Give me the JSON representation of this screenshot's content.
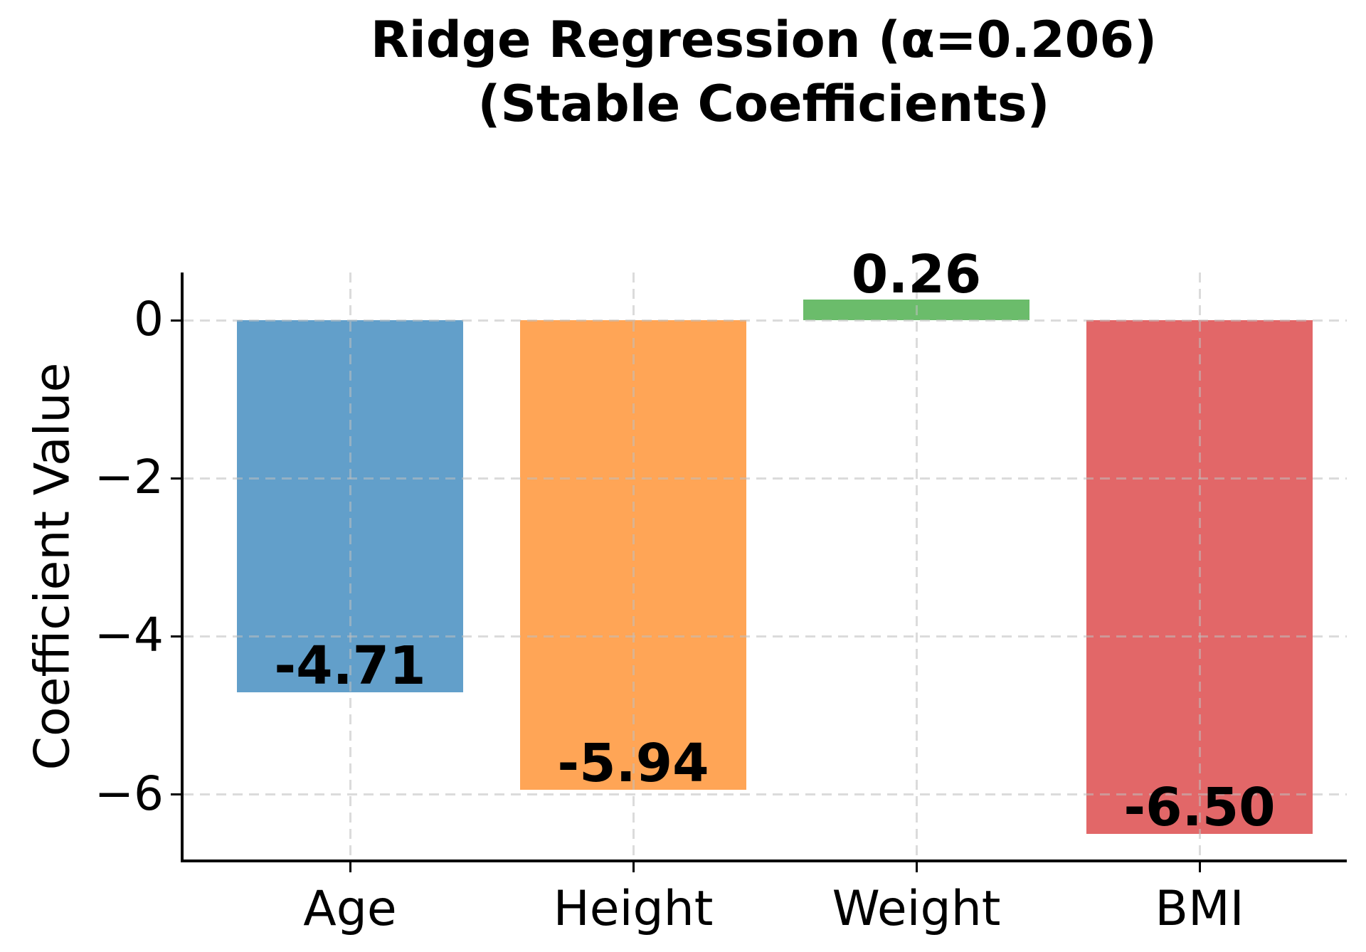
{
  "title": {
    "line1": "Ridge Regression (α=0.206)",
    "line2": "(Stable Coefficients)"
  },
  "chart_data": {
    "type": "bar",
    "title": "Ridge Regression (α=0.206)\n(Stable Coefficients)",
    "xlabel": "",
    "ylabel": "Coefficient Value",
    "categories": [
      "Age",
      "Height",
      "Weight",
      "BMI"
    ],
    "values": [
      -4.71,
      -5.94,
      0.26,
      -6.5
    ],
    "bar_labels": [
      "-4.71",
      "-5.94",
      "0.26",
      "-6.50"
    ],
    "bar_colors": [
      "#629FCA",
      "#FFA556",
      "#6BBC6B",
      "#E26768"
    ],
    "yticks": [
      0,
      -2,
      -4,
      -6
    ],
    "ytick_labels": [
      "0",
      "−2",
      "−4",
      "−6"
    ],
    "ylim": [
      -6.84,
      0.604
    ],
    "xlim": [
      -0.593,
      3.52
    ],
    "grid": true,
    "grid_style": "dashed",
    "legend": null,
    "colors": {
      "grid": "#BEBEBE",
      "spine": "#000000",
      "text": "#000000",
      "background": "#FFFFFF"
    }
  }
}
